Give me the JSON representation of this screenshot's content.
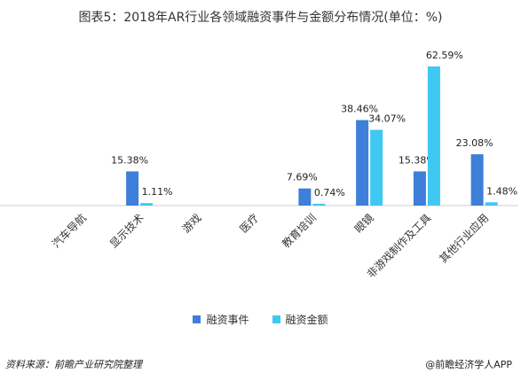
{
  "title": "图表5：2018年AR行业各领域融资事件与金额分布情况(单位：%)",
  "source": "资料来源：前瞻产业研究院整理",
  "credit": "@前瞻经济学人APP",
  "colors": {
    "events": "#3d7fd9",
    "amount": "#3ec8f2",
    "axis": "#cfcfcf"
  },
  "chart_data": {
    "type": "bar",
    "title": "图表5：2018年AR行业各领域融资事件与金额分布情况(单位：%)",
    "categories": [
      "汽车导航",
      "显示技术",
      "游戏",
      "医疗",
      "教育培训",
      "眼镜",
      "非游戏制作及工具",
      "其他行业应用"
    ],
    "series": [
      {
        "name": "融资事件",
        "values": [
          0,
          15.38,
          0,
          0,
          7.69,
          38.46,
          15.38,
          23.08
        ],
        "labels": [
          "",
          "15.38%",
          "",
          "",
          "7.69%",
          "38.46%",
          "15.38%",
          "23.08%"
        ]
      },
      {
        "name": "融资金额",
        "values": [
          0,
          1.11,
          0,
          0,
          0.74,
          34.07,
          62.59,
          1.48
        ],
        "labels": [
          "",
          "1.11%",
          "",
          "",
          "0.74%",
          "34.07%",
          "62.59%",
          "1.48%"
        ]
      }
    ],
    "ylim": [
      0,
      62.59
    ],
    "grid": false,
    "legend": "bottom"
  }
}
